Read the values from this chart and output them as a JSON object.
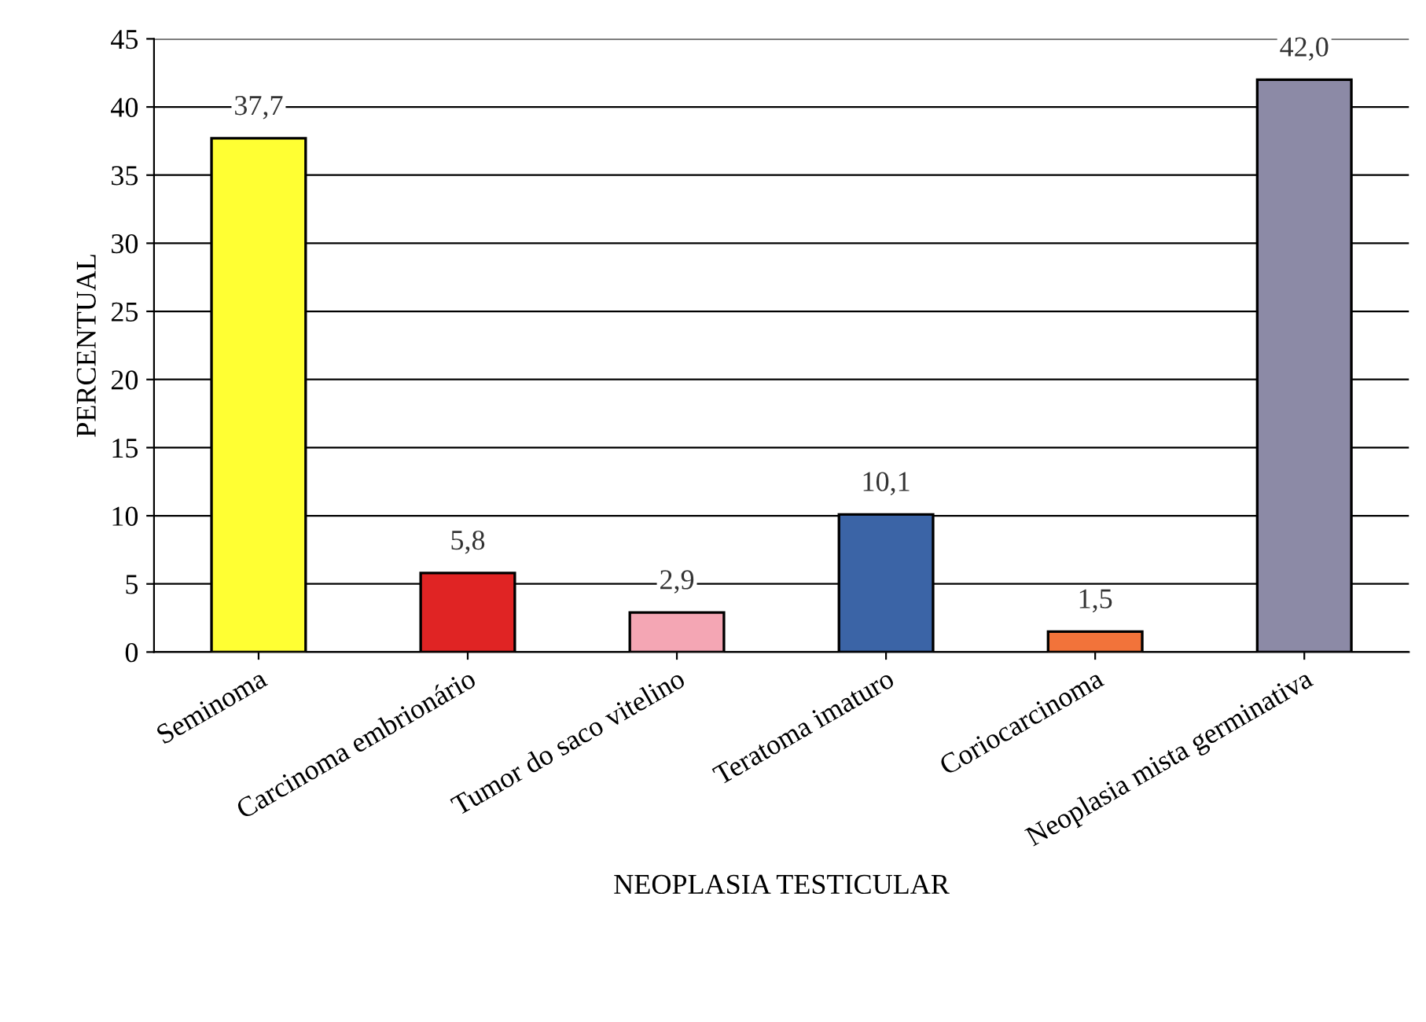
{
  "chart_data": {
    "type": "bar",
    "xlabel": "NEOPLASIA TESTICULAR",
    "ylabel": "PERCENTUAL",
    "categories": [
      "Seminoma",
      "Carcinoma embrionário",
      "Tumor do saco vitelino",
      "Teratoma imaturo",
      "Coriocarcinoma",
      "Neoplasia mista germinativa"
    ],
    "values": [
      37.7,
      5.8,
      2.9,
      10.1,
      1.5,
      42.0
    ],
    "colors": [
      "#ffff33",
      "#e02424",
      "#f4a6b4",
      "#3b64a6",
      "#f2733a",
      "#8c8aa6"
    ],
    "value_labels": [
      "37,7",
      "5,8",
      "2,9",
      "10,1",
      "1,5",
      "42,0"
    ],
    "ylim": [
      0,
      45
    ],
    "yticks": [
      0,
      5,
      10,
      15,
      20,
      25,
      30,
      35,
      40,
      45
    ],
    "grid": "y",
    "legend": false
  }
}
